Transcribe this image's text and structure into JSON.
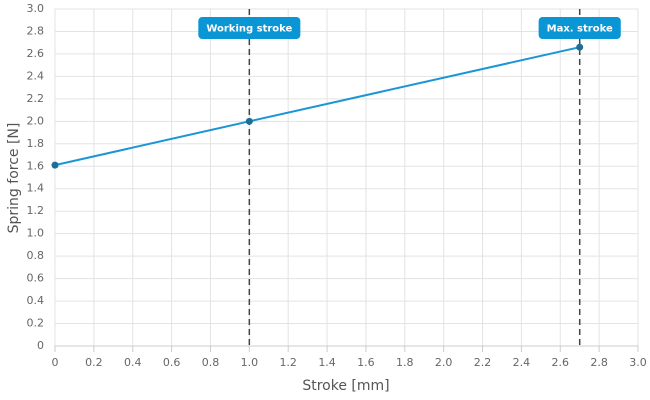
{
  "chart_data": {
    "type": "line",
    "x_label": "Stroke [mm]",
    "y_label": "Spring force [N]",
    "x": [
      0,
      1,
      2.7
    ],
    "series": [
      {
        "color": "#1a96d4",
        "marker_color": "#1f6d99",
        "values": [
          1.61,
          2.0,
          2.66
        ]
      }
    ],
    "xlim": [
      0,
      3
    ],
    "ylim": [
      0,
      3
    ],
    "xticks": [
      0,
      0.2,
      0.4,
      0.6,
      0.8,
      {
        "value": 1,
        "label": "1.0"
      },
      1.2,
      1.4,
      1.6,
      1.8,
      {
        "value": 2,
        "label": "2.0"
      },
      2.2,
      2.4,
      2.6,
      2.8,
      {
        "value": 3,
        "label": "3.0"
      }
    ],
    "yticks": [
      0,
      0.2,
      0.4,
      0.6,
      0.8,
      {
        "value": 1,
        "label": "1.0"
      },
      1.2,
      1.4,
      1.6,
      1.8,
      {
        "value": 2,
        "label": "2.0"
      },
      2.2,
      2.4,
      2.6,
      2.8,
      {
        "value": 3,
        "label": "3.0"
      }
    ],
    "grid": true,
    "annotations": [
      {
        "x": 1,
        "label": "Working stroke"
      },
      {
        "x": 2.7,
        "label": "Max. stroke"
      }
    ],
    "annotation_color": "#0a95d5"
  }
}
